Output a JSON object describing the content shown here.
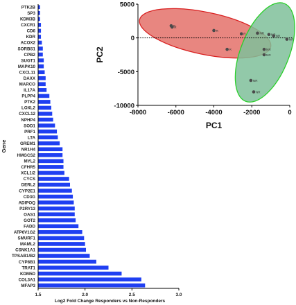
{
  "chart_data": [
    {
      "type": "bar",
      "orientation": "horizontal",
      "title": "",
      "xlabel": "Log2 Fold Change Responders vs Non-Responders",
      "ylabel": "Gene",
      "xlim": [
        1.5,
        3.0
      ],
      "xticks": [
        "1.5",
        "2.0",
        "2.5",
        "3.0"
      ],
      "bar_color": "#1f3ff2",
      "categories": [
        "PTK2B",
        "SP3",
        "KDM3B",
        "CXCR1",
        "CD6",
        "KDR",
        "ACOX2",
        "SORBS1",
        "CPB2",
        "SUGT1",
        "MAPK10",
        "CXCL11",
        "DAXX",
        "MARCO",
        "IL17A",
        "PLPP4",
        "PTK2",
        "LOXL2",
        "CXCL12",
        "NPHP4",
        "SOD1",
        "PRF1",
        "LTA",
        "GREM1",
        "NR1H4",
        "HMGCS2",
        "MYL2",
        "CFHR5",
        "XCL1/2",
        "CYCS",
        "DERL2",
        "CYP2E1",
        "CD3G",
        "ADIPOQ",
        "P2RY13",
        "OAS1",
        "GOT2",
        "FADD",
        "ATP6V1G2",
        "SMURF1",
        "MAML2",
        "CSNK1A1",
        "TPSAB1/B2",
        "CYP8B1",
        "TRAT1",
        "KDM5D",
        "COL3A1",
        "MFAP3"
      ],
      "values": [
        1.52,
        1.52,
        1.52,
        1.53,
        1.53,
        1.53,
        1.54,
        1.55,
        1.55,
        1.56,
        1.56,
        1.57,
        1.58,
        1.58,
        1.59,
        1.62,
        1.63,
        1.64,
        1.65,
        1.66,
        1.68,
        1.7,
        1.71,
        1.73,
        1.76,
        1.76,
        1.77,
        1.77,
        1.78,
        1.83,
        1.84,
        1.86,
        1.87,
        1.88,
        1.89,
        1.89,
        1.9,
        1.93,
        1.97,
        1.99,
        2.0,
        2.01,
        2.05,
        2.12,
        2.25,
        2.39,
        2.6,
        2.64
      ]
    },
    {
      "type": "scatter",
      "title": "",
      "xlabel": "PC1",
      "ylabel": "PC2",
      "xlim": [
        -8000,
        0
      ],
      "ylim": [
        -10000,
        5000
      ],
      "xticks": [
        "-8000",
        "-6000",
        "-4000",
        "-2000",
        "0"
      ],
      "yticks": [
        "5000",
        "0",
        "-5000",
        "-10000"
      ],
      "reference_line": "y = 0 (dotted)",
      "groups": [
        {
          "label": "R",
          "fill": "#e4716a",
          "stroke": "#d92020",
          "points": [
            {
              "x": -6250,
              "y": 1800
            },
            {
              "x": -6200,
              "y": 1600
            },
            {
              "x": -4000,
              "y": 1100
            },
            {
              "x": -2550,
              "y": 600
            },
            {
              "x": -3300,
              "y": -1700
            }
          ]
        },
        {
          "label": "NR",
          "fill": "#7fbf9a",
          "stroke": "#2ad02a",
          "points": [
            {
              "x": -1700,
              "y": 700
            },
            {
              "x": -1100,
              "y": 500
            },
            {
              "x": -850,
              "y": 300
            },
            {
              "x": -1350,
              "y": -1700
            },
            {
              "x": -1350,
              "y": -2500
            },
            {
              "x": -2050,
              "y": -6300
            },
            {
              "x": -1900,
              "y": -8000
            },
            {
              "x": -150,
              "y": -200
            }
          ]
        }
      ]
    }
  ]
}
